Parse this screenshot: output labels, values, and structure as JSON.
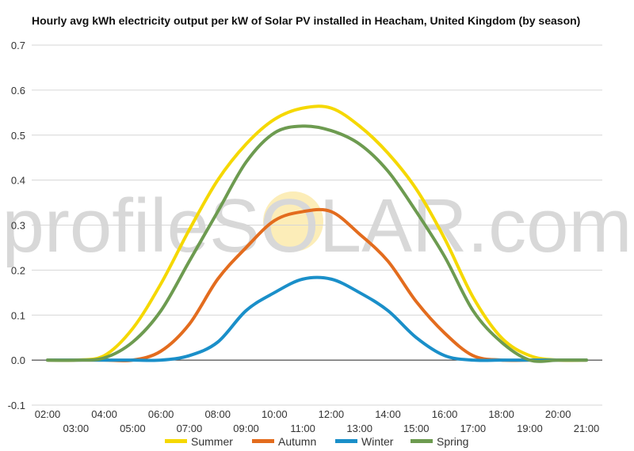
{
  "chart_data": {
    "type": "line",
    "title": "Hourly avg kWh electricity output per kW of Solar PV installed in Heacham, United Kingdom (by season)",
    "watermark": "profileSOLAR.com",
    "xlabel": "",
    "ylabel": "",
    "ylim": [
      -0.1,
      0.7
    ],
    "yticks": [
      "-0.1",
      "0.0",
      "0.1",
      "0.2",
      "0.3",
      "0.4",
      "0.5",
      "0.6",
      "0.7"
    ],
    "x": [
      "02:00",
      "03:00",
      "04:00",
      "05:00",
      "06:00",
      "07:00",
      "08:00",
      "09:00",
      "10:00",
      "11:00",
      "12:00",
      "13:00",
      "14:00",
      "15:00",
      "16:00",
      "17:00",
      "18:00",
      "19:00",
      "20:00",
      "21:00"
    ],
    "grid": true,
    "legend_position": "bottom",
    "series": [
      {
        "name": "Summer",
        "color": "#f5d800",
        "values": [
          0.0,
          0.0,
          0.01,
          0.07,
          0.17,
          0.29,
          0.4,
          0.48,
          0.535,
          0.56,
          0.56,
          0.52,
          0.46,
          0.38,
          0.27,
          0.14,
          0.05,
          0.01,
          0.0,
          0.0
        ]
      },
      {
        "name": "Autumn",
        "color": "#e36c1e",
        "values": [
          0.0,
          0.0,
          0.0,
          0.0,
          0.02,
          0.08,
          0.18,
          0.25,
          0.31,
          0.33,
          0.33,
          0.28,
          0.22,
          0.13,
          0.06,
          0.01,
          0.0,
          0.0,
          0.0,
          0.0
        ]
      },
      {
        "name": "Winter",
        "color": "#1a8fc9",
        "values": [
          0.0,
          0.0,
          0.0,
          0.0,
          0.0,
          0.01,
          0.04,
          0.11,
          0.15,
          0.18,
          0.18,
          0.15,
          0.11,
          0.05,
          0.01,
          0.0,
          0.0,
          0.0,
          0.0,
          0.0
        ]
      },
      {
        "name": "Spring",
        "color": "#6d9b50",
        "values": [
          0.0,
          0.0,
          0.005,
          0.04,
          0.11,
          0.22,
          0.33,
          0.44,
          0.505,
          0.52,
          0.51,
          0.48,
          0.42,
          0.33,
          0.23,
          0.11,
          0.04,
          0.0,
          0.0,
          0.0
        ]
      }
    ]
  }
}
